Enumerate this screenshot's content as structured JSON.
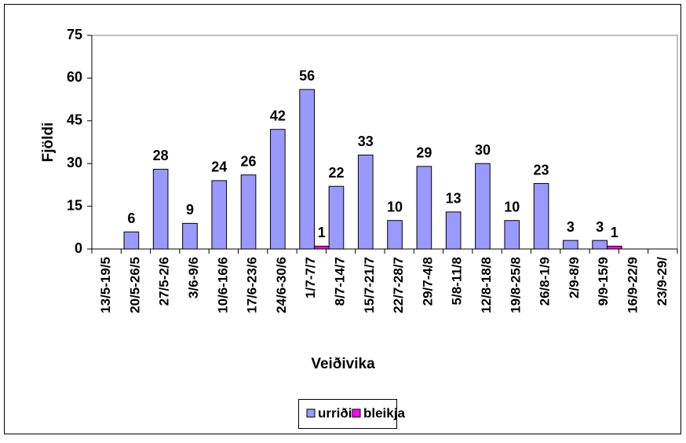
{
  "chart_data": {
    "type": "bar",
    "x_label": "Veiðivika",
    "y_label": "Fjöldi",
    "categories": [
      "13/5-19/5",
      "20/5-26/5",
      "27/5-2/6",
      "3/6-9/6",
      "10/6-16/6",
      "17/6-23/6",
      "24/6-30/6",
      "1/7-7/7",
      "8/7-14/7",
      "15/7-21/7",
      "22/7-28/7",
      "29/7-4/8",
      "5/8-11/8",
      "12/8-18/8",
      "19/8-25/8",
      "26/8-1/9",
      "2/9-8/9",
      "9/9-15/9",
      "16/9-22/9",
      "23/9-29/"
    ],
    "series": [
      {
        "name": "urriði",
        "color": "#9999ff",
        "values": [
          null,
          6,
          28,
          9,
          24,
          26,
          42,
          56,
          22,
          33,
          10,
          29,
          13,
          30,
          10,
          23,
          3,
          3,
          null,
          null
        ]
      },
      {
        "name": "bleikja",
        "color": "#ff00ff",
        "values": [
          null,
          null,
          null,
          null,
          null,
          null,
          null,
          1,
          null,
          null,
          null,
          null,
          null,
          null,
          null,
          null,
          null,
          1,
          null,
          null
        ]
      }
    ],
    "ylim": [
      0,
      75
    ],
    "yticks": [
      0,
      15,
      30,
      45,
      60,
      75
    ],
    "legend": "bottom"
  }
}
